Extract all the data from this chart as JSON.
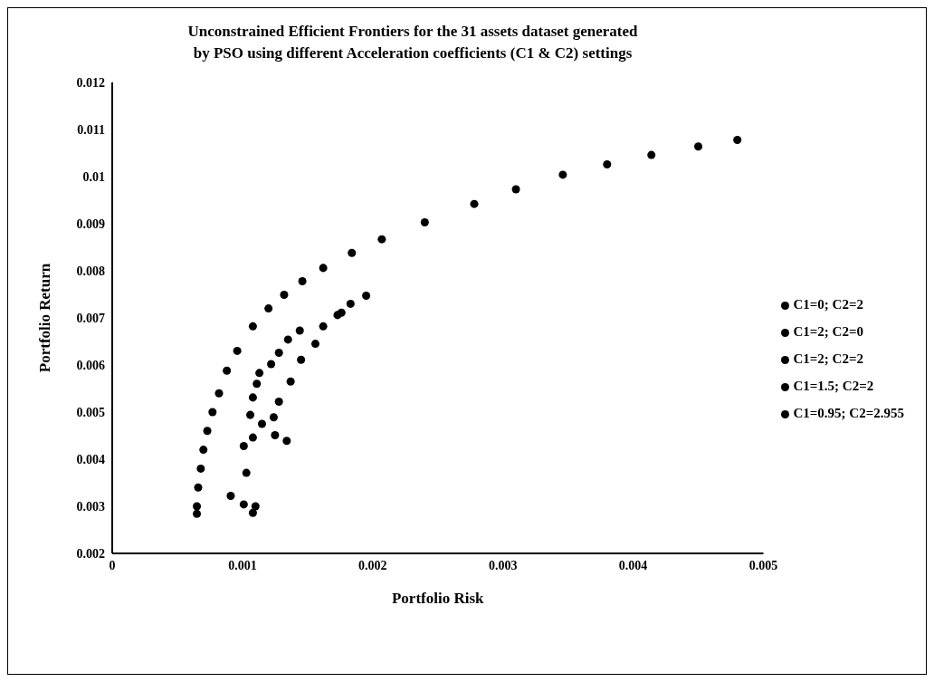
{
  "chart_data": {
    "type": "scatter",
    "title": "Unconstrained Efficient Frontiers for the 31 assets dataset generated by PSO using different Acceleration coefficients (C1 & C2) settings",
    "xlabel": "Portfolio Risk",
    "ylabel": "Portfolio Return",
    "xlim": [
      0,
      0.005
    ],
    "xticks": [
      0,
      0.001,
      0.002,
      0.003,
      0.004,
      0.005
    ],
    "ylim": [
      0.002,
      0.012
    ],
    "yticks": [
      0.002,
      0.003,
      0.004,
      0.005,
      0.006,
      0.007,
      0.008,
      0.009,
      0.01,
      0.011,
      0.012
    ],
    "grid": false,
    "legend": "right",
    "marker": "circle",
    "series": [
      {
        "color": "#000000",
        "x": [
          0.00065,
          0.00065,
          0.00066,
          0.00068,
          0.0007,
          0.00073,
          0.00077,
          0.00082,
          0.00088,
          0.00096,
          0.00108,
          0.0012,
          0.00132,
          0.00146,
          0.00162,
          0.00184,
          0.00207,
          0.0024,
          0.00278,
          0.0031,
          0.00346,
          0.0038,
          0.00414,
          0.0045,
          0.0048
        ],
        "values": [
          0.00284,
          0.003,
          0.0034,
          0.0038,
          0.0042,
          0.0046,
          0.005,
          0.0054,
          0.00588,
          0.0063,
          0.00682,
          0.0072,
          0.00749,
          0.00778,
          0.00806,
          0.00838,
          0.00867,
          0.00903,
          0.00942,
          0.00973,
          0.01004,
          0.01026,
          0.01046,
          0.01064,
          0.01078
        ]
      },
      {
        "name": "C1=0; C2=2",
        "color": "#000000",
        "x": [
          0.00091,
          0.00101,
          0.00108,
          0.0011,
          0.00103
        ],
        "values": [
          0.00322,
          0.00304,
          0.00286,
          0.003,
          0.00371
        ]
      },
      {
        "name": "C1=2; C2=0",
        "color": "#000000",
        "x": [
          0.00101,
          0.00108,
          0.00106,
          0.00108,
          0.00111,
          0.00113
        ],
        "values": [
          0.00428,
          0.00446,
          0.00494,
          0.00531,
          0.0056,
          0.00583
        ]
      },
      {
        "name": "C1=2; C2=2",
        "color": "#000000",
        "x": [
          0.00134,
          0.00125,
          0.00124,
          0.00128,
          0.00137
        ],
        "values": [
          0.00439,
          0.00451,
          0.00489,
          0.00522,
          0.00565
        ]
      },
      {
        "name": "C1=1.5; C2=2",
        "color": "#000000",
        "x": [
          0.00145,
          0.00156,
          0.00162,
          0.00176,
          0.00183,
          0.00195
        ],
        "values": [
          0.00611,
          0.00645,
          0.00682,
          0.00711,
          0.0073,
          0.00747
        ]
      },
      {
        "name": "C1=0.95; C2=2.955",
        "color": "#000000",
        "x": [
          0.00115,
          0.00122,
          0.00128,
          0.00135,
          0.00144,
          0.00173
        ],
        "values": [
          0.00475,
          0.00602,
          0.00626,
          0.00654,
          0.00673,
          0.00706
        ]
      }
    ]
  }
}
